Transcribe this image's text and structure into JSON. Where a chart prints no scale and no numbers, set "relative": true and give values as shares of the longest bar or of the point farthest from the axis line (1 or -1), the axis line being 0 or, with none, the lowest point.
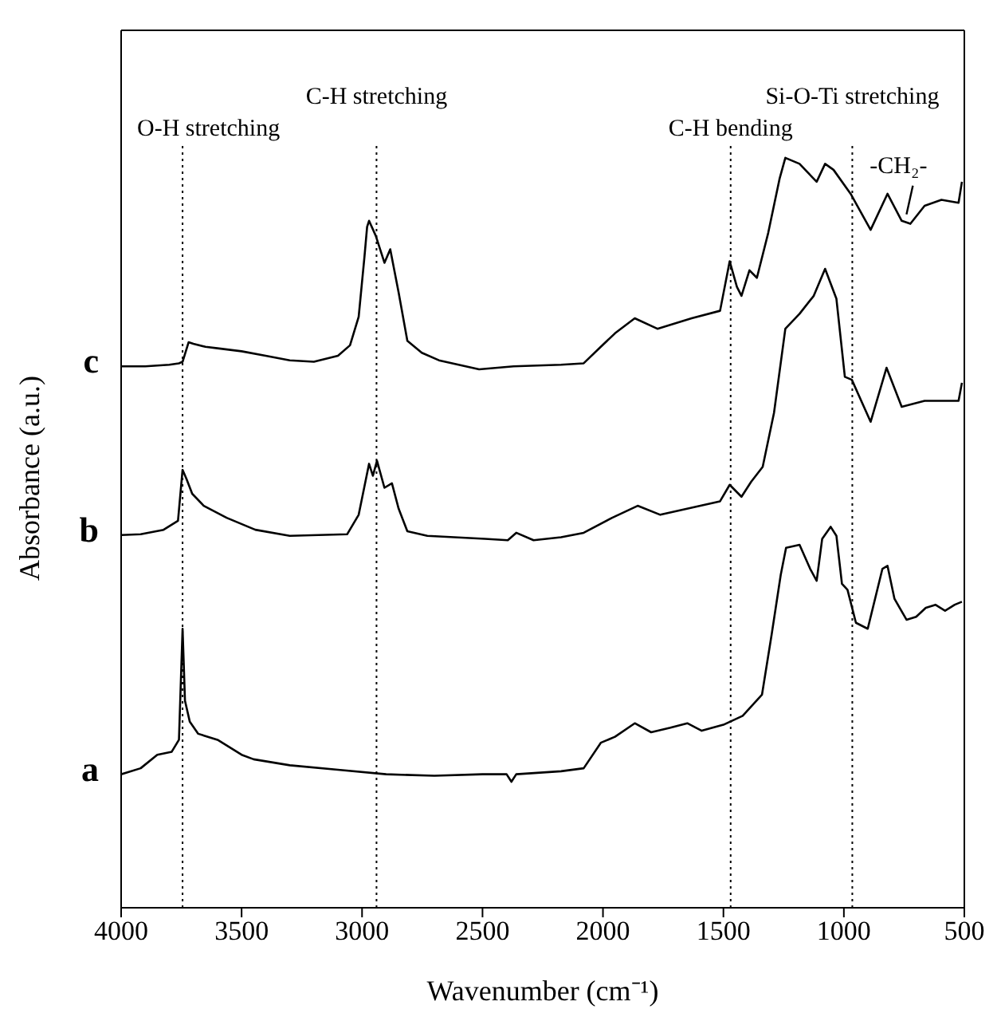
{
  "chart_data": {
    "type": "line",
    "xlabel": "Wavenumber (cm⁻¹)",
    "ylabel": "Absorbance (a.u.)",
    "relative": true,
    "xlim": [
      4000,
      500
    ],
    "xticks": [
      4000,
      3500,
      3000,
      2500,
      2000,
      1500,
      1000,
      500
    ],
    "series": [
      {
        "name": "a",
        "color": "#000000",
        "x": [
          4000,
          3919,
          3850,
          3790,
          3760,
          3745,
          3735,
          3715,
          3680,
          3600,
          3500,
          3450,
          3300,
          3100,
          2900,
          2700,
          2500,
          2400,
          2380,
          2360,
          2174,
          2080,
          2009,
          1950,
          1868,
          1800,
          1720,
          1650,
          1590,
          1500,
          1420,
          1340,
          1300,
          1262,
          1240,
          1184,
          1140,
          1113,
          1090,
          1055,
          1031,
          1008,
          985,
          950,
          901,
          840,
          819,
          790,
          740,
          700,
          660,
          620,
          580,
          540,
          510
        ],
        "values": [
          0.178,
          0.186,
          0.204,
          0.208,
          0.224,
          0.372,
          0.276,
          0.248,
          0.232,
          0.224,
          0.204,
          0.198,
          0.19,
          0.184,
          0.178,
          0.176,
          0.178,
          0.178,
          0.168,
          0.178,
          0.182,
          0.186,
          0.22,
          0.228,
          0.246,
          0.234,
          0.24,
          0.246,
          0.236,
          0.244,
          0.256,
          0.284,
          0.364,
          0.444,
          0.48,
          0.484,
          0.452,
          0.436,
          0.492,
          0.508,
          0.496,
          0.432,
          0.424,
          0.38,
          0.372,
          0.452,
          0.456,
          0.412,
          0.384,
          0.388,
          0.4,
          0.404,
          0.396,
          0.404,
          0.408
        ]
      },
      {
        "name": "b",
        "color": "#000000",
        "x": [
          4000,
          3919,
          3824,
          3764,
          3745,
          3729,
          3705,
          3657,
          3562,
          3443,
          3300,
          3062,
          3014,
          2971,
          2955,
          2938,
          2907,
          2876,
          2848,
          2812,
          2729,
          2490,
          2395,
          2360,
          2288,
          2174,
          2080,
          1962,
          1856,
          1762,
          1514,
          1474,
          1425,
          1385,
          1337,
          1290,
          1243,
          1184,
          1125,
          1078,
          1031,
          996,
          967,
          889,
          823,
          760,
          665,
          571,
          524,
          510
        ],
        "values": [
          0.497,
          0.498,
          0.504,
          0.516,
          0.584,
          0.572,
          0.552,
          0.536,
          0.52,
          0.504,
          0.496,
          0.498,
          0.524,
          0.592,
          0.576,
          0.596,
          0.56,
          0.566,
          0.532,
          0.502,
          0.496,
          0.492,
          0.49,
          0.5,
          0.49,
          0.494,
          0.5,
          0.52,
          0.536,
          0.524,
          0.542,
          0.564,
          0.548,
          0.568,
          0.588,
          0.66,
          0.772,
          0.792,
          0.816,
          0.852,
          0.812,
          0.708,
          0.704,
          0.648,
          0.72,
          0.668,
          0.676,
          0.676,
          0.676,
          0.7
        ]
      },
      {
        "name": "c",
        "color": "#000000",
        "x": [
          4000,
          3900,
          3800,
          3760,
          3745,
          3720,
          3700,
          3650,
          3600,
          3500,
          3400,
          3300,
          3200,
          3100,
          3050,
          3014,
          2990,
          2979,
          2971,
          2943,
          2907,
          2883,
          2848,
          2812,
          2752,
          2681,
          2514,
          2371,
          2174,
          2080,
          2009,
          1950,
          1868,
          1774,
          1632,
          1514,
          1474,
          1444,
          1425,
          1392,
          1361,
          1314,
          1267,
          1243,
          1184,
          1113,
          1078,
          1043,
          972,
          889,
          819,
          760,
          724,
          665,
          595,
          524,
          510
        ],
        "values": [
          0.722,
          0.722,
          0.724,
          0.726,
          0.728,
          0.754,
          0.752,
          0.748,
          0.746,
          0.742,
          0.736,
          0.73,
          0.728,
          0.736,
          0.75,
          0.788,
          0.868,
          0.908,
          0.916,
          0.896,
          0.86,
          0.878,
          0.82,
          0.756,
          0.74,
          0.73,
          0.718,
          0.722,
          0.724,
          0.726,
          0.748,
          0.766,
          0.786,
          0.772,
          0.786,
          0.796,
          0.862,
          0.828,
          0.816,
          0.85,
          0.84,
          0.9,
          0.972,
          1.0,
          0.992,
          0.968,
          0.992,
          0.984,
          0.952,
          0.904,
          0.952,
          0.916,
          0.912,
          0.936,
          0.944,
          0.94,
          0.968
        ]
      }
    ],
    "ref_lines": [
      {
        "axis": "x",
        "value": 3745,
        "label": "O-H stretching",
        "line_style": "dotted"
      },
      {
        "axis": "x",
        "value": 2940,
        "label": "C-H stretching",
        "line_style": "dotted"
      },
      {
        "axis": "x",
        "value": 1470,
        "label": "C-H bending",
        "line_style": "dotted"
      },
      {
        "axis": "x",
        "value": 965,
        "label": "Si-O-Ti stretching",
        "line_style": "dotted"
      }
    ],
    "annotations": [
      {
        "text": "-CH₂-",
        "x": 760,
        "y": 0.916
      }
    ]
  }
}
